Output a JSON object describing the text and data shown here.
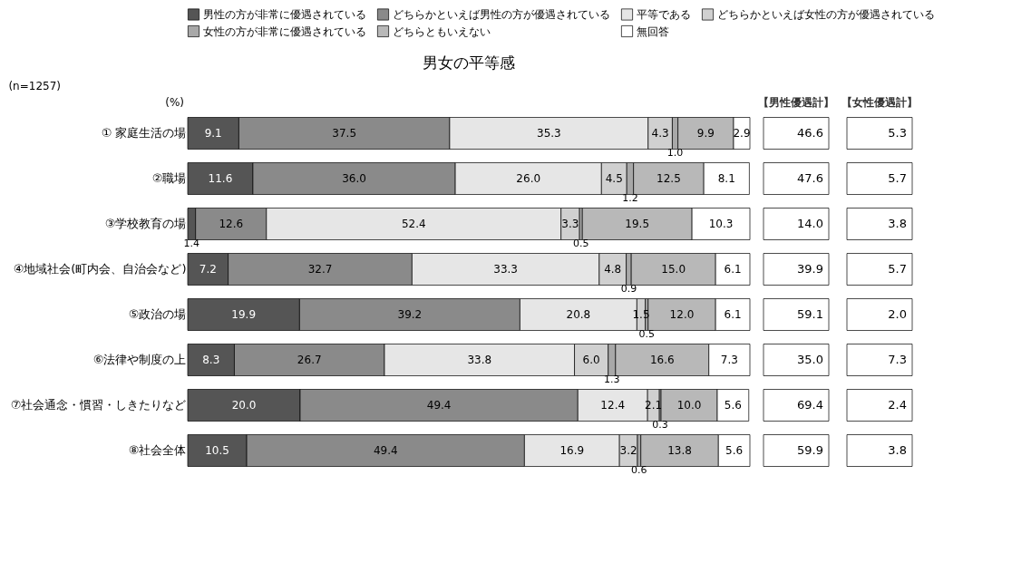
{
  "chart_data": [
    {
      "type": "bar",
      "orientation": "horizontal",
      "stacked": true,
      "tick_labels": "y",
      "title": "男女の平等感",
      "legend": "top",
      "annotations": [
        "(n=1257)",
        "(%)"
      ],
      "categories": [
        "① 家庭生活の場",
        "②職場",
        "③学校教育の場",
        "④地域社会(町内会、自治会など)",
        "⑤政治の場",
        "⑥法律や制度の上",
        "⑦社会通念・慣習・しきたりなど",
        "⑧社会全体"
      ],
      "series": [
        {
          "name": "男性の方が非常に優遇されている",
          "color": "#555555",
          "values": [
            9.1,
            11.6,
            1.4,
            7.2,
            19.9,
            8.3,
            20.0,
            10.5
          ],
          "value_labels": [
            "9.1",
            "11.6",
            "1.4",
            "7.2",
            "19.9",
            "8.3",
            "20.0",
            "10.5"
          ]
        },
        {
          "name": "どちらかといえば男性の方が優遇されている",
          "color": "#8a8a8a",
          "values": [
            37.5,
            36.0,
            12.6,
            32.7,
            39.2,
            26.7,
            49.4,
            49.4
          ],
          "value_labels": [
            "37.5",
            "36.0",
            "12.6",
            "32.7",
            "39.2",
            "26.7",
            "49.4",
            "49.4"
          ]
        },
        {
          "name": "平等である",
          "color": "#e6e6e6",
          "values": [
            35.3,
            26.0,
            52.4,
            33.3,
            20.8,
            33.8,
            12.4,
            16.9
          ],
          "value_labels": [
            "35.3",
            "26.0",
            "52.4",
            "33.3",
            "20.8",
            "33.8",
            "12.4",
            "16.9"
          ]
        },
        {
          "name": "どちらかといえば女性の方が優遇されている",
          "color": "#d0d0d0",
          "values": [
            4.3,
            4.5,
            3.3,
            4.8,
            1.5,
            6.0,
            2.1,
            3.2
          ],
          "value_labels": [
            "4.3",
            "4.5",
            "3.3",
            "4.8",
            "1.5",
            "6.0",
            "2.1",
            "3.2"
          ]
        },
        {
          "name": "女性の方が非常に優遇されている",
          "color": "#a8a8a8",
          "values": [
            1.0,
            1.2,
            0.5,
            0.9,
            0.5,
            1.3,
            0.3,
            0.6
          ],
          "value_labels": [
            "1.0",
            "1.2",
            "0.5",
            "0.9",
            "0.5",
            "1.3",
            "0.3",
            "0.6"
          ]
        },
        {
          "name": "どちらともいえない",
          "color": "#b8b8b8",
          "values": [
            9.9,
            12.5,
            19.5,
            15.0,
            12.0,
            16.6,
            10.0,
            13.8
          ],
          "value_labels": [
            "9.9",
            "12.5",
            "19.5",
            "15.0",
            "12.0",
            "16.6",
            "10.0",
            "13.8"
          ]
        },
        {
          "name": "無回答",
          "color": "#ffffff",
          "values": [
            2.9,
            8.1,
            10.3,
            6.1,
            6.1,
            7.3,
            5.6,
            5.6
          ],
          "value_labels": [
            "2.9",
            "8.1",
            "10.3",
            "6.1",
            "6.1",
            "7.3",
            "5.6",
            "5.6"
          ]
        }
      ]
    },
    {
      "type": "other",
      "title": "【男性優遇計】",
      "annotations": [
        "46.6",
        "47.6",
        "14.0",
        "39.9",
        "59.1",
        "35.0",
        "69.4",
        "59.9"
      ]
    },
    {
      "type": "other",
      "title": "【女性優遇計】",
      "annotations": [
        "5.3",
        "5.7",
        "3.8",
        "5.7",
        "2.0",
        "7.3",
        "2.4",
        "3.8"
      ]
    }
  ]
}
